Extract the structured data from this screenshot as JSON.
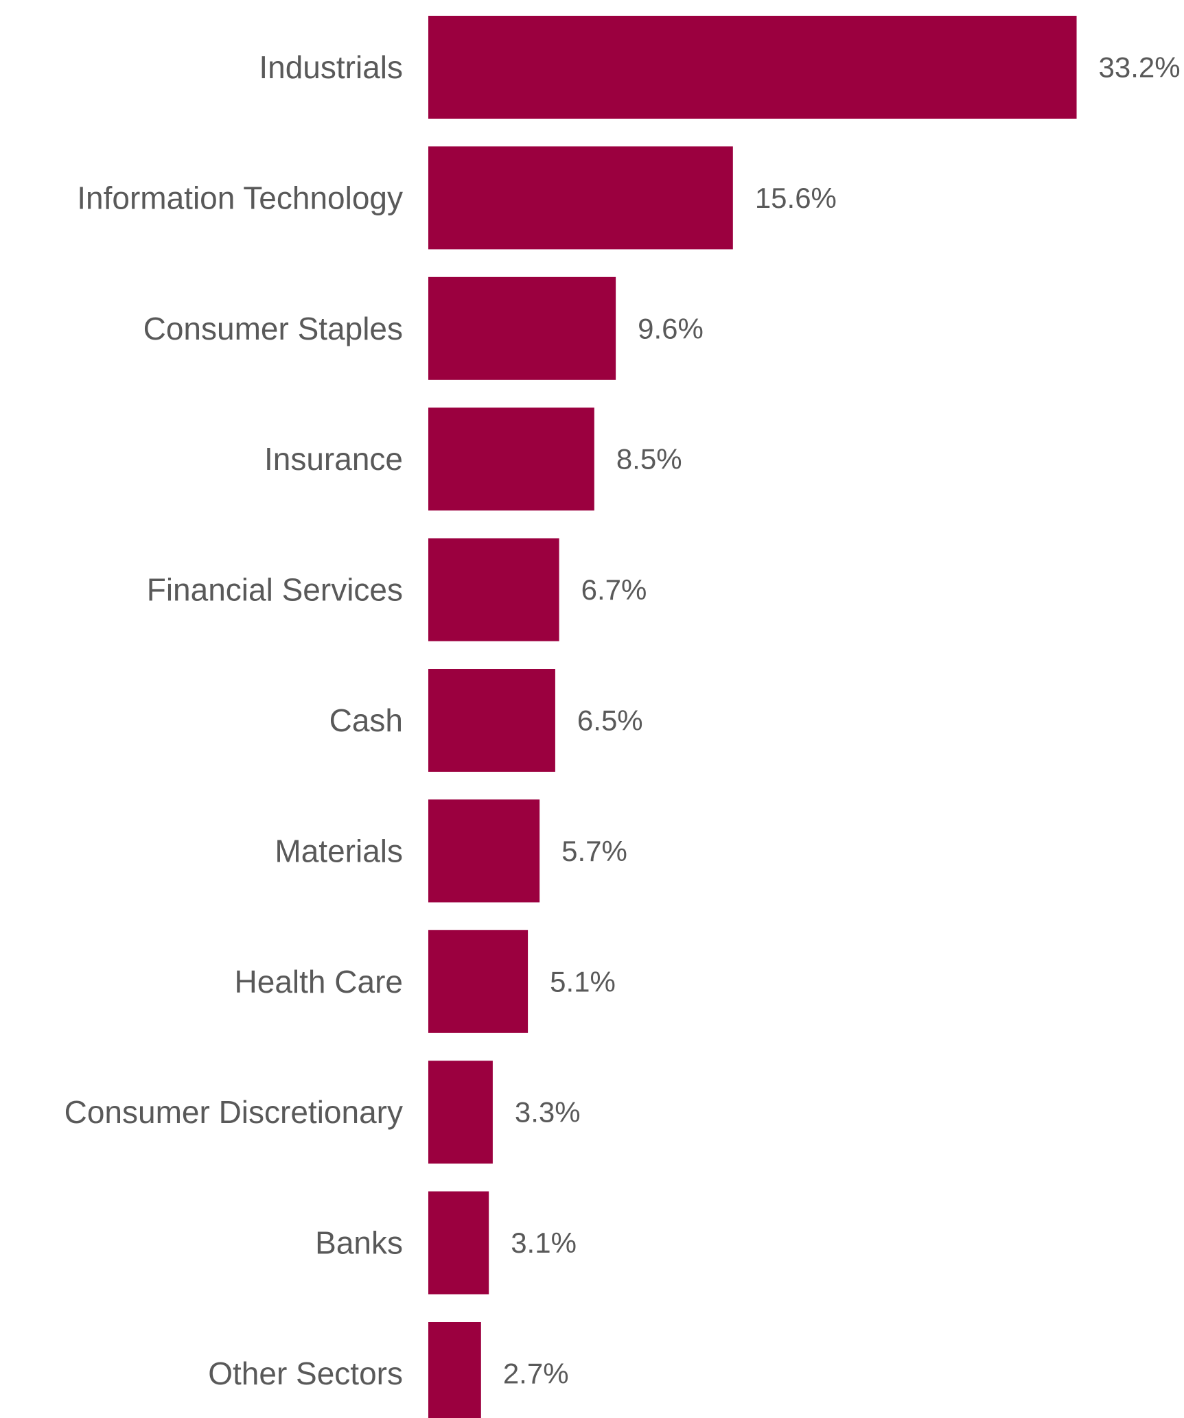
{
  "chart_data": {
    "type": "bar",
    "orientation": "horizontal",
    "title": "",
    "xlabel": "",
    "ylabel": "",
    "categories": [
      "Industrials",
      "Information Technology",
      "Consumer Staples",
      "Insurance",
      "Financial Services",
      "Cash",
      "Materials",
      "Health Care",
      "Consumer Discretionary",
      "Banks",
      "Other Sectors"
    ],
    "values": [
      33.2,
      15.6,
      9.6,
      8.5,
      6.7,
      6.5,
      5.7,
      5.1,
      3.3,
      3.1,
      2.7
    ],
    "value_labels": [
      "33.2%",
      "15.6%",
      "9.6%",
      "8.5%",
      "6.7%",
      "6.5%",
      "5.7%",
      "5.1%",
      "3.3%",
      "3.1%",
      "2.7%"
    ],
    "unit": "%",
    "grid": false,
    "legend": "none",
    "bar_color": "#9B003F",
    "text_color": "#595959"
  }
}
